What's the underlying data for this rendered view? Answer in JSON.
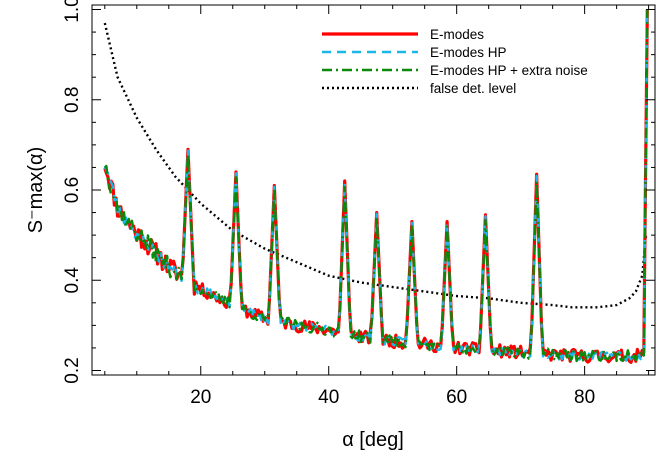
{
  "chart_data": {
    "type": "line",
    "xlabel": "α [deg]",
    "ylabel": "S⁻max(α)",
    "xlim": [
      3,
      91
    ],
    "ylim": [
      0.19,
      1.01
    ],
    "x_ticks": [
      20,
      40,
      60,
      80
    ],
    "y_ticks": [
      0.2,
      0.4,
      0.6,
      0.8,
      1.0
    ],
    "x_tick_labels": [
      "20",
      "40",
      "60",
      "80"
    ],
    "y_tick_labels": [
      "0.2",
      "0.4",
      "0.6",
      "0.8",
      "1.0"
    ],
    "grid": false,
    "legend_position": "top-right",
    "baseline": {
      "x": [
        5,
        7,
        9,
        11,
        13,
        15,
        17,
        20,
        25,
        30,
        35,
        40,
        45,
        50,
        55,
        60,
        65,
        70,
        75,
        80,
        85,
        88,
        89
      ],
      "y": [
        0.66,
        0.56,
        0.52,
        0.49,
        0.46,
        0.43,
        0.41,
        0.38,
        0.345,
        0.315,
        0.3,
        0.29,
        0.275,
        0.265,
        0.258,
        0.25,
        0.245,
        0.24,
        0.235,
        0.232,
        0.232,
        0.232,
        0.235
      ]
    },
    "peaks": {
      "x": [
        18,
        25.5,
        31.5,
        42.5,
        47.5,
        53,
        58.5,
        64.5,
        72.5
      ],
      "y": [
        0.69,
        0.64,
        0.61,
        0.62,
        0.55,
        0.53,
        0.53,
        0.545,
        0.635
      ]
    },
    "end_spike": {
      "x": [
        89.5,
        89.8
      ],
      "y": [
        0.6,
        1.0
      ]
    },
    "series": [
      {
        "name": "E-modes",
        "color": "#ff0000",
        "style": "solid",
        "width": 3.2,
        "noise": 0.014,
        "peak_scale": 1.0,
        "seed": 11
      },
      {
        "name": "E-modes HP",
        "color": "#1ab8e8",
        "style": "dashed",
        "width": 2.4,
        "noise": 0.01,
        "peak_scale": 0.99,
        "seed": 23
      },
      {
        "name": "E-modes HP + extra noise",
        "color": "#0a8a0a",
        "style": "dashdot",
        "width": 2.4,
        "noise": 0.013,
        "peak_scale": 0.96,
        "seed": 37
      },
      {
        "name": "false det. level",
        "color": "#000000",
        "style": "dotted",
        "width": 2.4,
        "x": [
          5,
          7,
          10,
          13,
          16,
          20,
          25,
          30,
          35,
          40,
          45,
          50,
          55,
          60,
          65,
          70,
          75,
          78,
          82,
          85,
          87,
          88,
          89,
          89.6
        ],
        "y": [
          0.97,
          0.85,
          0.76,
          0.69,
          0.63,
          0.57,
          0.51,
          0.47,
          0.44,
          0.41,
          0.395,
          0.385,
          0.375,
          0.365,
          0.36,
          0.35,
          0.345,
          0.34,
          0.34,
          0.345,
          0.36,
          0.375,
          0.41,
          0.5
        ]
      }
    ]
  }
}
